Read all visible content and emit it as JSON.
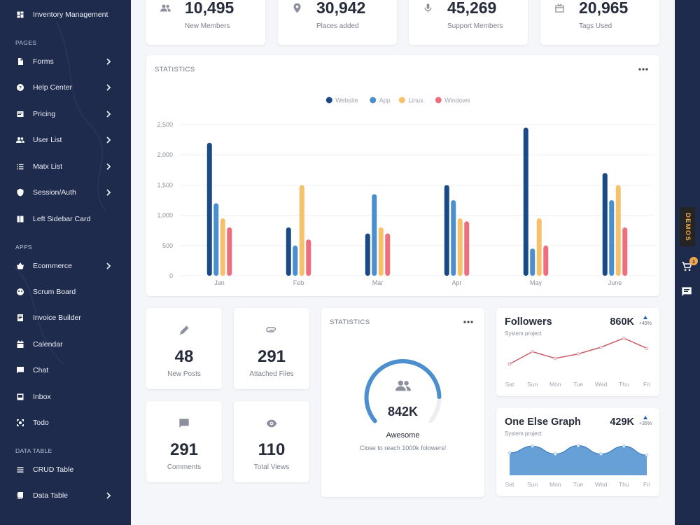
{
  "sidebar": {
    "top_item": {
      "label": "Inventory Management",
      "icon": "dashboard-icon"
    },
    "sections": [
      {
        "title": "PAGES",
        "items": [
          {
            "label": "Forms",
            "icon": "document-icon",
            "chevron": true
          },
          {
            "label": "Help Center",
            "icon": "help-icon",
            "chevron": true
          },
          {
            "label": "Pricing",
            "icon": "price-icon",
            "chevron": true
          },
          {
            "label": "User List",
            "icon": "people-icon",
            "chevron": true
          },
          {
            "label": "Matx List",
            "icon": "list-icon",
            "chevron": true
          },
          {
            "label": "Session/Auth",
            "icon": "shield-icon",
            "chevron": true
          },
          {
            "label": "Left Sidebar Card",
            "icon": "sidebar-card-icon",
            "chevron": false
          }
        ]
      },
      {
        "title": "APPS",
        "items": [
          {
            "label": "Ecommerce",
            "icon": "basket-icon",
            "chevron": true
          },
          {
            "label": "Scrum Board",
            "icon": "scrum-icon",
            "chevron": false
          },
          {
            "label": "Invoice Builder",
            "icon": "invoice-icon",
            "chevron": false
          },
          {
            "label": "Calendar",
            "icon": "calendar-icon",
            "chevron": false
          },
          {
            "label": "Chat",
            "icon": "chat-icon",
            "chevron": false
          },
          {
            "label": "Inbox",
            "icon": "inbox-icon",
            "chevron": false
          },
          {
            "label": "Todo",
            "icon": "todo-icon",
            "chevron": false
          }
        ]
      },
      {
        "title": "DATA TABLE",
        "items": [
          {
            "label": "CRUD Table",
            "icon": "list-icon",
            "chevron": false
          },
          {
            "label": "Data Table",
            "icon": "table-icon",
            "chevron": true
          }
        ]
      }
    ]
  },
  "stats": [
    {
      "value": "10,495",
      "label": "New Members",
      "icon": "people-icon"
    },
    {
      "value": "30,942",
      "label": "Places added",
      "icon": "location-pin-icon"
    },
    {
      "value": "45,269",
      "label": "Support Members",
      "icon": "microphone-icon"
    },
    {
      "value": "20,965",
      "label": "Tags Used",
      "icon": "tag-icon"
    }
  ],
  "statistics_card": {
    "title": "STATISTICS"
  },
  "chart_data": {
    "type": "bar",
    "categories": [
      "Jan",
      "Feb",
      "Mar",
      "Apr",
      "May",
      "June"
    ],
    "series": [
      {
        "name": "Website",
        "color": "#1a4a85",
        "values": [
          2200,
          800,
          700,
          1500,
          2450,
          1700
        ]
      },
      {
        "name": "App",
        "color": "#4b8fcf",
        "values": [
          1200,
          500,
          1350,
          1250,
          450,
          1250
        ]
      },
      {
        "name": "Linux",
        "color": "#f5c26b",
        "values": [
          950,
          1500,
          800,
          950,
          950,
          1500
        ]
      },
      {
        "name": "Windows",
        "color": "#ee6e7e",
        "values": [
          800,
          600,
          700,
          900,
          500,
          800
        ]
      }
    ],
    "ylim": [
      0,
      2500
    ],
    "yticks": [
      "0",
      "500",
      "1,000",
      "1,500",
      "2,000",
      "2,500"
    ],
    "legend_position": "top-center",
    "grid": true
  },
  "small_cards": [
    {
      "value": "48",
      "label": "New Posts",
      "icon": "pen-icon"
    },
    {
      "value": "291",
      "label": "Attached Files",
      "icon": "attachment-icon"
    },
    {
      "value": "291",
      "label": "Comments",
      "icon": "comment-icon"
    },
    {
      "value": "110",
      "label": "Total Views",
      "icon": "eye-icon"
    }
  ],
  "gauge_card": {
    "title": "STATISTICS",
    "value": "842K",
    "progress": 0.842,
    "headline": "Awesome",
    "caption": "Close to reach 1000k folowers!",
    "color": "#4b8fcf"
  },
  "followers_card": {
    "title": "Followers",
    "subtitle": "System project",
    "value": "860K",
    "change": "+49%",
    "days": [
      "Sat",
      "Sun",
      "Mon",
      "Tue",
      "Wed",
      "Thu",
      "Fri"
    ],
    "points": [
      20,
      42,
      30,
      38,
      50,
      66,
      48
    ],
    "color": "#c95d66"
  },
  "graph_card": {
    "title": "One Else Graph",
    "subtitle": "System project",
    "value": "429K",
    "change": "+35%",
    "days": [
      "Sat",
      "Sun",
      "Mon",
      "Tue",
      "Wed",
      "Thu",
      "Fri"
    ],
    "points": [
      40,
      52,
      38,
      53,
      38,
      52,
      36
    ],
    "color": "#4b8fcf"
  },
  "rail": {
    "demos_label": "DEMOS",
    "cart_count": "1"
  }
}
